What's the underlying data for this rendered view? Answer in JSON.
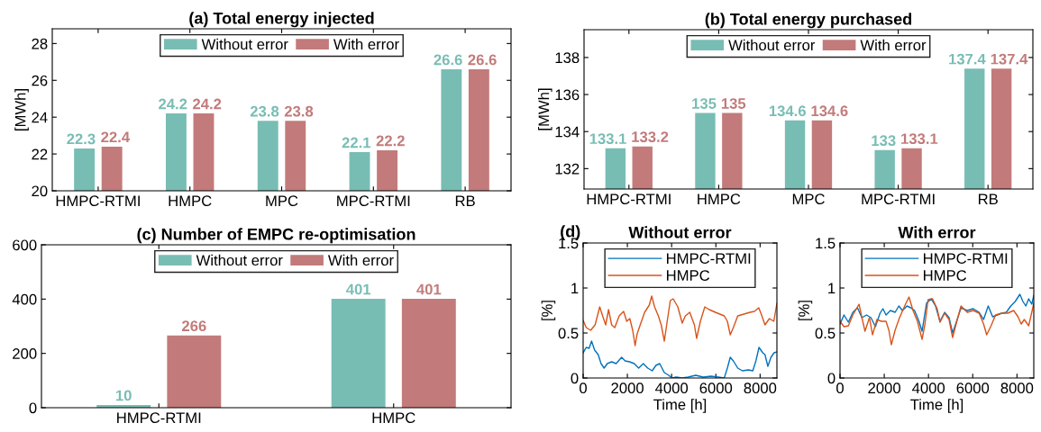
{
  "chart_data": [
    {
      "type": "bar",
      "title": "(a) Total energy injected",
      "ylabel": "[MWh]",
      "categories": [
        "HMPC-RTMI",
        "HMPC",
        "MPC",
        "MPC-RTMI",
        "RB"
      ],
      "ylim": [
        20,
        28.8
      ],
      "yticks": [
        20,
        22,
        24,
        26,
        28
      ],
      "data_labels": true,
      "legend": "top",
      "grid": false,
      "series": [
        {
          "name": "Without error",
          "color": "#78bdb4",
          "values": [
            22.3,
            24.2,
            23.8,
            22.1,
            26.6
          ]
        },
        {
          "name": "With error",
          "color": "#c27b7a",
          "values": [
            22.4,
            24.2,
            23.8,
            22.2,
            26.6
          ]
        }
      ]
    },
    {
      "type": "bar",
      "title": "(b) Total energy purchased",
      "ylabel": "[MWh]",
      "categories": [
        "HMPC-RTMI",
        "HMPC",
        "MPC",
        "MPC-RTMI",
        "RB"
      ],
      "ylim": [
        130.9,
        139.5
      ],
      "yticks": [
        132,
        134,
        136,
        138
      ],
      "data_labels": true,
      "legend": "top",
      "grid": false,
      "series": [
        {
          "name": "Without error",
          "color": "#78bdb4",
          "values": [
            133.1,
            135,
            134.6,
            133,
            137.4
          ]
        },
        {
          "name": "With error",
          "color": "#c27b7a",
          "values": [
            133.2,
            135,
            134.6,
            133.1,
            137.4
          ]
        }
      ]
    },
    {
      "type": "bar",
      "title": "(c) Number of EMPC re-optimisation",
      "categories": [
        "HMPC-RTMI",
        "HMPC"
      ],
      "ylim": [
        0,
        600
      ],
      "yticks": [
        0,
        200,
        400,
        600
      ],
      "data_labels": true,
      "legend": "top",
      "grid": false,
      "series": [
        {
          "name": "Without error",
          "color": "#78bdb4",
          "values": [
            10,
            401
          ]
        },
        {
          "name": "With error",
          "color": "#c27b7a",
          "values": [
            266,
            401
          ]
        }
      ]
    },
    {
      "type": "line",
      "title": "Without error",
      "annotations": [
        "(d)"
      ],
      "xlabel": "Time [h]",
      "ylabel": "[%]",
      "xlim": [
        0,
        8760
      ],
      "xticks": [
        0,
        2000,
        4000,
        6000,
        8000
      ],
      "ylim": [
        0,
        1.5
      ],
      "yticks": [
        0,
        0.5,
        1,
        1.5
      ],
      "legend": "top",
      "grid": false,
      "series": [
        {
          "name": "HMPC-RTMI",
          "color": "#0072bd",
          "x": [
            0,
            140,
            270,
            380,
            520,
            680,
            810,
            950,
            1090,
            1290,
            1490,
            1740,
            1900,
            2100,
            2310,
            2510,
            2720,
            2920,
            3120,
            3290,
            3460,
            3670,
            3870,
            4010,
            4210,
            4480,
            4750,
            5090,
            5430,
            5770,
            6110,
            6380,
            6520,
            6650,
            6790,
            6990,
            7200,
            7470,
            7670,
            7810,
            7950,
            8120,
            8220,
            8350,
            8490,
            8630,
            8760
          ],
          "values": [
            0.28,
            0.34,
            0.33,
            0.41,
            0.31,
            0.26,
            0.16,
            0.11,
            0.16,
            0.18,
            0.16,
            0.23,
            0.19,
            0.18,
            0.16,
            0.11,
            0.16,
            0.11,
            0.08,
            0.14,
            0.16,
            0.06,
            0.03,
            0.0,
            0.01,
            0.0,
            0.01,
            0.03,
            0.01,
            0.02,
            0.01,
            0.0,
            0.11,
            0.23,
            0.19,
            0.11,
            0.08,
            0.09,
            0.08,
            0.19,
            0.34,
            0.28,
            0.26,
            0.13,
            0.23,
            0.28,
            0.29
          ]
        },
        {
          "name": "HMPC",
          "color": "#d95319",
          "x": [
            0,
            140,
            340,
            540,
            750,
            880,
            1020,
            1150,
            1290,
            1430,
            1630,
            1830,
            1970,
            2110,
            2240,
            2350,
            2440,
            2580,
            2780,
            2990,
            3100,
            3230,
            3400,
            3530,
            3670,
            3800,
            3940,
            4070,
            4280,
            4480,
            4620,
            4820,
            5030,
            5130,
            5300,
            5500,
            5700,
            5980,
            6180,
            6380,
            6520,
            6650,
            6790,
            6990,
            7270,
            7540,
            7740,
            7940,
            8080,
            8220,
            8420,
            8620,
            8760
          ],
          "values": [
            0.64,
            0.56,
            0.53,
            0.59,
            0.79,
            0.69,
            0.59,
            0.76,
            0.59,
            0.56,
            0.69,
            0.74,
            0.63,
            0.66,
            0.53,
            0.36,
            0.49,
            0.59,
            0.73,
            0.81,
            0.91,
            0.79,
            0.69,
            0.59,
            0.41,
            0.63,
            0.86,
            0.88,
            0.79,
            0.61,
            0.69,
            0.73,
            0.59,
            0.44,
            0.63,
            0.79,
            0.76,
            0.73,
            0.71,
            0.69,
            0.63,
            0.48,
            0.56,
            0.69,
            0.71,
            0.73,
            0.74,
            0.78,
            0.69,
            0.59,
            0.66,
            0.63,
            0.83
          ]
        }
      ]
    },
    {
      "type": "line",
      "title": "With error",
      "xlabel": "Time [h]",
      "ylabel": "[%]",
      "xlim": [
        0,
        8760
      ],
      "xticks": [
        0,
        2000,
        4000,
        6000,
        8000
      ],
      "ylim": [
        0,
        1.5
      ],
      "yticks": [
        0,
        0.5,
        1,
        1.5
      ],
      "legend": "top",
      "grid": false,
      "series": [
        {
          "name": "HMPC-RTMI",
          "color": "#0072bd",
          "x": [
            0,
            180,
            380,
            580,
            790,
            990,
            1200,
            1400,
            1600,
            1810,
            1940,
            2080,
            2280,
            2490,
            2660,
            2820,
            3030,
            3200,
            3370,
            3570,
            3710,
            3910,
            4120,
            4320,
            4520,
            4730,
            4930,
            5090,
            5270,
            5470,
            5750,
            6020,
            6290,
            6490,
            6700,
            6900,
            7110,
            7310,
            7520,
            7720,
            7920,
            8130,
            8270,
            8400,
            8530,
            8670,
            8760
          ],
          "values": [
            0.6,
            0.7,
            0.62,
            0.73,
            0.78,
            0.67,
            0.7,
            0.67,
            0.57,
            0.72,
            0.77,
            0.7,
            0.75,
            0.73,
            0.8,
            0.75,
            0.8,
            0.78,
            0.75,
            0.63,
            0.52,
            0.83,
            0.88,
            0.8,
            0.63,
            0.73,
            0.67,
            0.5,
            0.63,
            0.78,
            0.75,
            0.77,
            0.73,
            0.65,
            0.8,
            0.68,
            0.7,
            0.72,
            0.73,
            0.8,
            0.85,
            0.93,
            0.85,
            0.8,
            0.88,
            0.82,
            0.92
          ]
        },
        {
          "name": "HMPC",
          "color": "#d95319",
          "x": [
            0,
            180,
            380,
            580,
            860,
            990,
            1130,
            1330,
            1470,
            1670,
            1870,
            2080,
            2210,
            2320,
            2490,
            2690,
            2960,
            3120,
            3300,
            3500,
            3710,
            3840,
            3980,
            4180,
            4390,
            4520,
            4730,
            4930,
            5090,
            5270,
            5470,
            5750,
            6020,
            6290,
            6490,
            6630,
            6830,
            7030,
            7310,
            7580,
            7850,
            8050,
            8190,
            8330,
            8530,
            8760
          ],
          "values": [
            0.63,
            0.57,
            0.58,
            0.7,
            0.82,
            0.67,
            0.52,
            0.67,
            0.48,
            0.65,
            0.63,
            0.63,
            0.53,
            0.37,
            0.53,
            0.67,
            0.82,
            0.9,
            0.75,
            0.63,
            0.43,
            0.6,
            0.87,
            0.88,
            0.77,
            0.62,
            0.72,
            0.65,
            0.45,
            0.62,
            0.8,
            0.73,
            0.75,
            0.72,
            0.6,
            0.48,
            0.58,
            0.7,
            0.72,
            0.72,
            0.75,
            0.68,
            0.6,
            0.65,
            0.58,
            0.83
          ]
        }
      ]
    }
  ]
}
